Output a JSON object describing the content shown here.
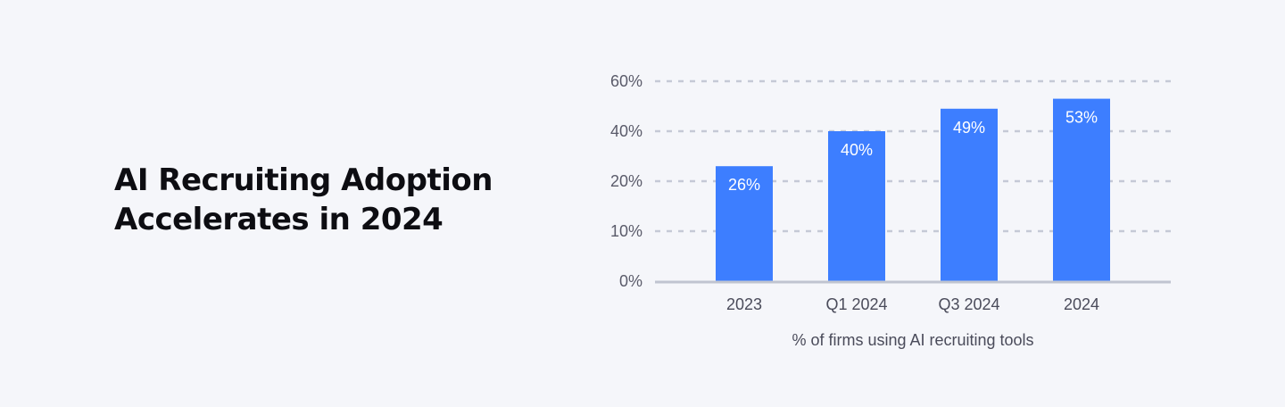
{
  "title": "AI Recruiting Adoption Accelerates in 2024",
  "chart_data": {
    "type": "bar",
    "title": "",
    "xlabel": "% of firms using AI recruiting tools",
    "ylabel": "",
    "categories": [
      "2023",
      "Q1 2024",
      "Q3 2024",
      "2024"
    ],
    "values": [
      26,
      40,
      49,
      53
    ],
    "data_labels": [
      "26%",
      "40%",
      "49%",
      "53%"
    ],
    "y_ticks": [
      0,
      10,
      20,
      40,
      60
    ],
    "y_tick_labels": [
      "0%",
      "10%",
      "20%",
      "40%",
      "60%"
    ],
    "ylim": [
      0,
      60
    ],
    "grid": true,
    "colors": {
      "bar": "#3d7eff",
      "grid": "#c5c9d6",
      "axis": "#c0c4d0",
      "background": "#f5f6fa"
    }
  }
}
